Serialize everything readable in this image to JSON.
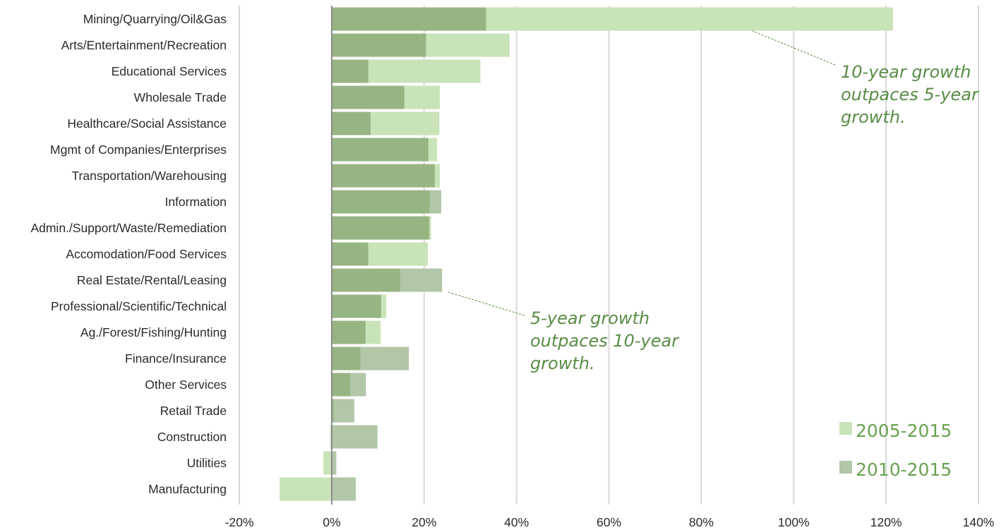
{
  "chart_data": {
    "type": "bar",
    "orientation": "horizontal",
    "bar_layout": "overlap",
    "categories": [
      "Mining/Quarrying/Oil&Gas",
      "Arts/Entertainment/Recreation",
      "Educational Services",
      "Wholesale Trade",
      "Healthcare/Social Assistance",
      "Mgmt of Companies/Enterprises",
      "Transportation/Warehousing",
      "Information",
      "Admin./Support/Waste/Remediation",
      "Accomodation/Food Services",
      "Real Estate/Rental/Leasing",
      "Professional/Scientific/Technical",
      "Ag./Forest/Fishing/Hunting",
      "Finance/Insurance",
      "Other Services",
      "Retail Trade",
      "Construction",
      "Utilities",
      "Manufacturing"
    ],
    "series": [
      {
        "name": "2005-2015",
        "color": "#c9e3b9",
        "values": [
          121.5,
          38.5,
          32.2,
          23.4,
          23.3,
          22.8,
          23.4,
          21.2,
          21.5,
          20.8,
          14.8,
          11.8,
          10.6,
          6.2,
          4.0,
          0.4,
          -0.3,
          -1.8,
          -11.3
        ]
      },
      {
        "name": "2010-2015",
        "color": "#b2c6a8",
        "values": [
          33.4,
          20.4,
          7.9,
          15.7,
          8.4,
          20.9,
          22.3,
          23.7,
          21.1,
          7.9,
          23.9,
          10.7,
          7.3,
          16.7,
          7.4,
          4.9,
          9.9,
          1.0,
          5.2
        ]
      }
    ],
    "overlap_color": "#97b583",
    "xlim": [
      -20,
      140
    ],
    "xticks": [
      -20,
      0,
      20,
      40,
      60,
      80,
      100,
      120,
      140
    ],
    "tick_suffix": "%",
    "grid": "vertical",
    "legend_position": "bottom-right",
    "annotations": [
      {
        "lines": [
          "10-year growth",
          "outpaces 5-year",
          "growth."
        ],
        "points_to_category": "Mining/Quarrying/Oil&Gas",
        "points_to_value": 91
      },
      {
        "lines": [
          "5-year growth",
          "outpaces 10-year",
          "growth."
        ],
        "points_to_category": "Real Estate/Rental/Leasing",
        "points_to_value": 25
      }
    ]
  }
}
